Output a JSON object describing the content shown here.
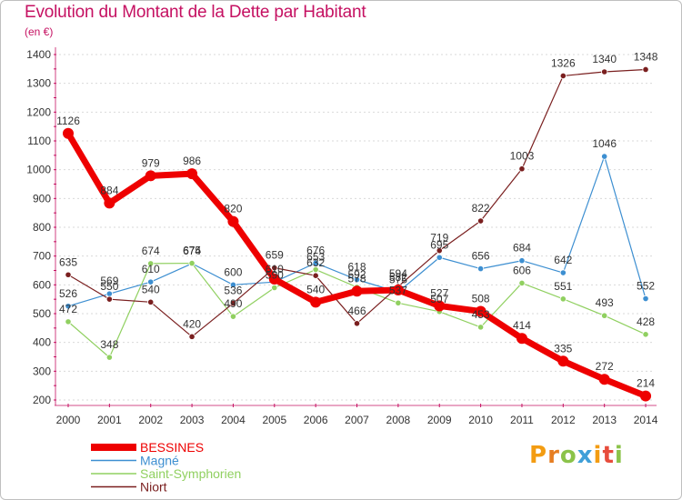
{
  "title": "Evolution du Montant de la Dette par Habitant",
  "unit_label": "(en €)",
  "logo": {
    "letters": [
      {
        "ch": "P",
        "color": "#f39c12"
      },
      {
        "ch": "r",
        "color": "#e67e22"
      },
      {
        "ch": "o",
        "color": "#8bc34a"
      },
      {
        "ch": "x",
        "color": "#3f9fd8"
      },
      {
        "ch": "i",
        "color": "#f39c12"
      },
      {
        "ch": "t",
        "color": "#e74c3c"
      },
      {
        "ch": "i",
        "color": "#8bc34a"
      }
    ]
  },
  "chart_data": {
    "type": "line",
    "title": "Evolution du Montant de la Dette par Habitant",
    "ylabel": "(en €)",
    "x": [
      "2000",
      "2001",
      "2002",
      "2003",
      "2004",
      "2005",
      "2006",
      "2007",
      "2008",
      "2009",
      "2010",
      "2011",
      "2012",
      "2013",
      "2014"
    ],
    "ylim": [
      200,
      1400
    ],
    "yticks": [
      200,
      300,
      400,
      500,
      600,
      700,
      800,
      900,
      1000,
      1100,
      1200,
      1300,
      1400
    ],
    "legend_position": "bottom-left",
    "series": [
      {
        "name": "Magné",
        "color": "#3d8fd1",
        "width": 1.2,
        "marker": 3.2,
        "values": [
          526,
          569,
          610,
          674,
          600,
          610,
          676,
          618,
          575,
          695,
          656,
          684,
          642,
          1046,
          552
        ],
        "labels": [
          "526",
          "569",
          "610",
          "674",
          "600",
          "610",
          "676",
          "618",
          "575",
          "695",
          "656",
          "684",
          "642",
          "1046",
          "552"
        ]
      },
      {
        "name": "Saint-Symphorien",
        "color": "#90d060",
        "width": 1.2,
        "marker": 3.2,
        "values": [
          472,
          348,
          674,
          675,
          490,
          590,
          653,
          592,
          537,
          507,
          453,
          606,
          551,
          493,
          428
        ],
        "labels": [
          "472",
          "348",
          "674",
          "675",
          "490",
          "590",
          "653",
          "592",
          "537",
          "507",
          "453",
          "606",
          "551",
          "493",
          "428"
        ]
      },
      {
        "name": "Niort",
        "color": "#7a1f1f",
        "width": 1.2,
        "marker": 3.2,
        "values": [
          635,
          550,
          540,
          420,
          536,
          659,
          632,
          466,
          594,
          719,
          822,
          1003,
          1326,
          1340,
          1348
        ],
        "labels": [
          "635",
          "550",
          "540",
          "420",
          "536",
          "659",
          "632",
          "466",
          "594",
          "719",
          "822",
          "1003",
          "1326",
          "1340",
          "1348"
        ]
      },
      {
        "name": "BESSINES",
        "color": "#ee0000",
        "width": 7,
        "marker": 6,
        "values": [
          1126,
          884,
          979,
          986,
          820,
          620,
          540,
          578,
          582,
          527,
          508,
          414,
          335,
          272,
          214
        ],
        "labels": [
          "1126",
          "884",
          "979",
          "986",
          "820",
          "",
          "540",
          "578",
          "582",
          "527",
          "508",
          "414",
          "335",
          "272",
          "214"
        ]
      }
    ],
    "legend": [
      {
        "name": "BESSINES",
        "color": "#ee0000"
      },
      {
        "name": "Magné",
        "color": "#3d8fd1"
      },
      {
        "name": "Saint-Symphorien",
        "color": "#90d060"
      },
      {
        "name": "Niort",
        "color": "#7a1f1f"
      }
    ]
  }
}
